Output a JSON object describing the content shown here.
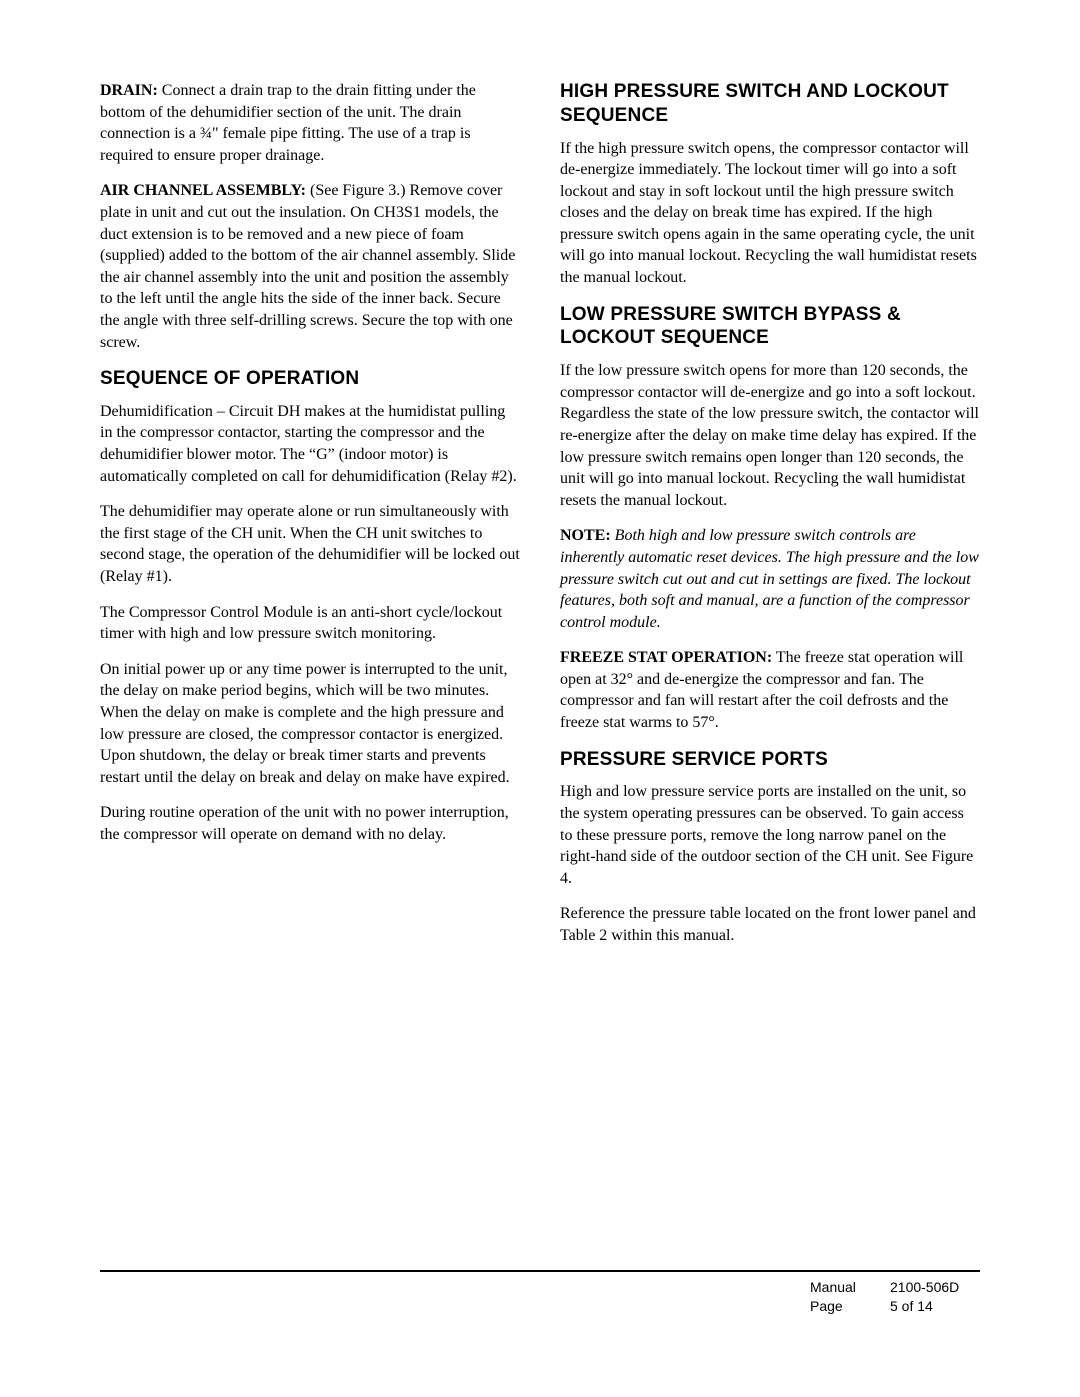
{
  "typography": {
    "body_font": "Times New Roman",
    "heading_font": "Arial",
    "body_fontsize_pt": 12,
    "heading_fontsize_pt": 14,
    "text_color": "#000000",
    "background_color": "#ffffff"
  },
  "left": {
    "drain_label": "DRAIN:",
    "drain_text": " Connect a drain trap to the drain fitting under the bottom of the dehumidifier section of the unit.  The drain connection is a ¾\" female pipe fitting.  The use of a trap is required to ensure proper drainage.",
    "air_channel_label": "AIR CHANNEL ASSEMBLY:",
    "air_channel_text": " (See Figure 3.)  Remove cover plate in unit and cut out the insulation.  On CH3S1 models, the duct extension is to be removed and a new piece of foam (supplied) added to the bottom of the air channel assembly.  Slide the air channel assembly into the unit and position the assembly to the left until the angle hits the side of the inner back.  Secure the angle with three self-drilling screws.  Secure the top with one screw.",
    "seq_heading": "SEQUENCE OF OPERATION",
    "seq_p1": "Dehumidification – Circuit DH makes at the humidistat pulling in the compressor contactor, starting the compressor and the dehumidifier blower motor.  The “G” (indoor motor) is automatically completed on call for dehumidification (Relay #2).",
    "seq_p2": "The dehumidifier may operate alone or run simultaneously with the first stage of the CH unit.  When the CH unit switches to second stage, the operation of the dehumidifier will be locked out (Relay #1).",
    "seq_p3": "The Compressor Control Module is an anti-short cycle/lockout timer with high and low pressure switch monitoring.",
    "seq_p4": "On initial power up or any time power is interrupted to the unit, the delay on make period begins, which will be two minutes.  When the delay on make is complete and the high pressure and low pressure are closed, the compressor contactor is energized.  Upon shutdown, the delay or break timer starts and prevents restart until the delay on break and delay on make have expired.",
    "seq_p5": "During routine operation of the unit with no power interruption, the compressor will operate on demand with no delay."
  },
  "right": {
    "hp_heading": "HIGH PRESSURE SWITCH AND LOCKOUT SEQUENCE",
    "hp_p1": "If the high pressure switch opens, the compressor contactor will de-energize immediately.  The lockout timer will go into a soft lockout and stay in soft lockout until the high pressure switch closes and the delay on break time has expired.  If the high pressure switch opens again in the same operating cycle, the unit will go into manual lockout.  Recycling the wall humidistat resets the manual lockout.",
    "lp_heading": "LOW PRESSURE SWITCH BYPASS & LOCKOUT SEQUENCE",
    "lp_p1": "If the low pressure switch opens for more than 120 seconds, the compressor contactor will de-energize and go into a soft lockout.  Regardless the state of the low pressure switch, the contactor will re-energize after the delay on make time delay has expired.  If the low pressure switch remains open longer than 120 seconds, the unit will go into manual lockout.  Recycling the wall humidistat resets the manual lockout.",
    "note_label": "NOTE:",
    "note_text": " Both high and low pressure switch controls are inherently automatic reset devices.  The high pressure and the low pressure switch cut out and cut in settings are fixed.  The lockout features, both soft and manual, are a function of the compressor control module.",
    "freeze_label": "FREEZE STAT OPERATION:",
    "freeze_text": " The freeze stat operation will open at 32° and de-energize the compressor and fan.  The compressor and fan will restart after the coil defrosts and the freeze stat warms to 57°.",
    "psp_heading": "PRESSURE SERVICE PORTS",
    "psp_p1": "High and low pressure service ports are installed on the unit, so the system operating pressures can be observed.  To gain access to these pressure ports, remove the long narrow panel on the right-hand side of the outdoor section of the CH unit.  See Figure 4.",
    "psp_p2": "Reference the pressure table located on the front lower panel and Table 2 within this manual."
  },
  "footer": {
    "manual_label": "Manual",
    "manual_value": "2100-506D",
    "page_label": "Page",
    "page_value": "5 of 14",
    "rule_color": "#000000"
  }
}
